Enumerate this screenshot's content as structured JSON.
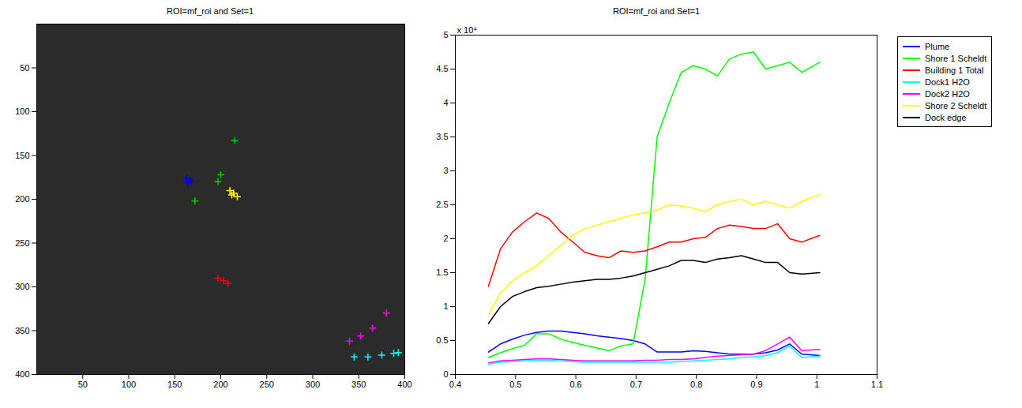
{
  "chart_data": [
    {
      "type": "scatter",
      "title": "ROI=mf_roi and Set=1",
      "marker": "plus",
      "xlim": [
        0,
        400
      ],
      "xticks": [
        50,
        100,
        150,
        200,
        250,
        300,
        350,
        400
      ],
      "ylim": [
        400,
        0
      ],
      "yticks": [
        50,
        100,
        150,
        200,
        250,
        300,
        350,
        400
      ],
      "series": [
        {
          "color": "#0000ff",
          "x": [
            163,
            166,
            168,
            164
          ],
          "y": [
            176,
            178,
            180,
            181
          ]
        },
        {
          "color": "#00cc00",
          "x": [
            215,
            200,
            197,
            172
          ],
          "y": [
            133,
            172,
            180,
            202
          ]
        },
        {
          "color": "#ffff00",
          "x": [
            210,
            214,
            218,
            212
          ],
          "y": [
            190,
            193,
            197,
            195
          ]
        },
        {
          "color": "#ff0000",
          "x": [
            197,
            203,
            208
          ],
          "y": [
            290,
            293,
            296
          ]
        },
        {
          "color": "#ff00ff",
          "x": [
            380,
            365,
            352,
            340
          ],
          "y": [
            330,
            347,
            356,
            362
          ]
        },
        {
          "color": "#00ffff",
          "x": [
            345,
            360,
            375,
            388,
            393
          ],
          "y": [
            380,
            380,
            378,
            376,
            375
          ]
        }
      ]
    },
    {
      "type": "line",
      "title": "ROI=mf_roi and Set=1",
      "annotation": "x 10⁴",
      "legend": "right",
      "xlim": [
        0.4,
        1.1
      ],
      "xticks": [
        0.4,
        0.5,
        0.6,
        0.7,
        0.8,
        0.9,
        1,
        1.1
      ],
      "ylim": [
        0,
        5
      ],
      "yticks": [
        0,
        0.5,
        1,
        1.5,
        2,
        2.5,
        3,
        3.5,
        4,
        4.5,
        5
      ],
      "x": [
        0.455,
        0.475,
        0.495,
        0.515,
        0.535,
        0.555,
        0.575,
        0.595,
        0.615,
        0.635,
        0.655,
        0.675,
        0.695,
        0.715,
        0.735,
        0.755,
        0.775,
        0.795,
        0.815,
        0.835,
        0.855,
        0.875,
        0.895,
        0.915,
        0.935,
        0.955,
        0.975,
        1.005
      ],
      "series": [
        {
          "name": "Plume",
          "color": "#0000ff",
          "values": [
            0.33,
            0.45,
            0.52,
            0.58,
            0.62,
            0.64,
            0.64,
            0.62,
            0.6,
            0.57,
            0.55,
            0.53,
            0.5,
            0.45,
            0.33,
            0.33,
            0.33,
            0.35,
            0.34,
            0.32,
            0.3,
            0.3,
            0.3,
            0.32,
            0.36,
            0.45,
            0.3,
            0.28
          ]
        },
        {
          "name": "Shore 1 Scheldt",
          "color": "#00ff00",
          "values": [
            0.25,
            0.32,
            0.38,
            0.43,
            0.6,
            0.6,
            0.52,
            0.47,
            0.43,
            0.39,
            0.35,
            0.42,
            0.45,
            1.4,
            3.5,
            4.0,
            4.45,
            4.55,
            4.5,
            4.4,
            4.65,
            4.72,
            4.75,
            4.5,
            4.55,
            4.6,
            4.45,
            4.6
          ]
        },
        {
          "name": "Building 1 Total",
          "color": "#ff0000",
          "values": [
            1.3,
            1.85,
            2.1,
            2.25,
            2.38,
            2.3,
            2.1,
            1.95,
            1.8,
            1.75,
            1.72,
            1.82,
            1.8,
            1.82,
            1.88,
            1.95,
            1.95,
            2.0,
            2.02,
            2.15,
            2.2,
            2.18,
            2.15,
            2.15,
            2.22,
            2.0,
            1.95,
            2.05
          ]
        },
        {
          "name": "Dock1 H2O",
          "color": "#00ffff",
          "values": [
            0.15,
            0.18,
            0.19,
            0.2,
            0.21,
            0.21,
            0.2,
            0.19,
            0.18,
            0.18,
            0.18,
            0.18,
            0.18,
            0.18,
            0.18,
            0.18,
            0.19,
            0.2,
            0.21,
            0.22,
            0.23,
            0.25,
            0.26,
            0.28,
            0.32,
            0.42,
            0.25,
            0.27
          ]
        },
        {
          "name": "Dock2 H2O",
          "color": "#ff00ff",
          "values": [
            0.17,
            0.2,
            0.21,
            0.22,
            0.23,
            0.23,
            0.22,
            0.21,
            0.2,
            0.2,
            0.2,
            0.2,
            0.2,
            0.21,
            0.21,
            0.22,
            0.22,
            0.23,
            0.25,
            0.27,
            0.28,
            0.29,
            0.3,
            0.35,
            0.45,
            0.55,
            0.35,
            0.37
          ]
        },
        {
          "name": "Shore 2 Scheldt",
          "color": "#ffff00",
          "values": [
            0.88,
            1.2,
            1.38,
            1.5,
            1.6,
            1.75,
            1.9,
            2.05,
            2.15,
            2.2,
            2.25,
            2.3,
            2.35,
            2.38,
            2.42,
            2.5,
            2.48,
            2.45,
            2.4,
            2.5,
            2.55,
            2.58,
            2.5,
            2.55,
            2.5,
            2.45,
            2.55,
            2.65
          ]
        },
        {
          "name": "Dock edge",
          "color": "#000000",
          "values": [
            0.75,
            1.0,
            1.15,
            1.22,
            1.28,
            1.3,
            1.33,
            1.36,
            1.38,
            1.4,
            1.4,
            1.42,
            1.45,
            1.5,
            1.55,
            1.6,
            1.68,
            1.68,
            1.65,
            1.7,
            1.72,
            1.75,
            1.7,
            1.65,
            1.65,
            1.5,
            1.48,
            1.5
          ]
        }
      ]
    }
  ]
}
